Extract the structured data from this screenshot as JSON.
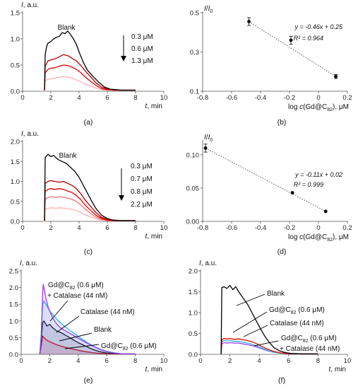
{
  "colors": {
    "black": "#000000",
    "red_dark": "#b00000",
    "red": "#e00000",
    "red_light": "#ff7070",
    "red_lighter": "#ffb0b0",
    "purple": "#9b3df0",
    "cyan": "#22b4e6",
    "blue": "#3a5bd0",
    "gray_dots": "#555555"
  },
  "chart_data": [
    {
      "panel": "(a)",
      "type": "line",
      "ylabel": "I, a.u.",
      "xlabel": "t, min",
      "xlim": [
        0,
        10
      ],
      "ylim": [
        0,
        1.5
      ],
      "xticks": [
        "0",
        "2",
        "4",
        "6",
        "8",
        "10"
      ],
      "yticks": [
        "0.0",
        "0.5",
        "1.0",
        "1.5"
      ],
      "annotations": [
        "Blank",
        "0.3 μM",
        "0.6 μM",
        "1.3 μM"
      ],
      "series": [
        {
          "name": "Blank",
          "color": "#000000",
          "x": [
            1.55,
            1.6,
            1.7,
            1.8,
            2.0,
            2.2,
            2.4,
            2.6,
            2.8,
            3.0,
            3.2,
            3.4,
            3.6,
            3.8,
            4.0,
            4.3,
            4.6,
            5.0,
            5.4,
            5.8,
            6.2,
            6.6,
            7.0,
            7.5,
            8.0
          ],
          "y": [
            0.02,
            0.7,
            0.85,
            0.92,
            0.95,
            1.0,
            1.03,
            1.05,
            1.12,
            1.1,
            1.15,
            1.08,
            1.0,
            0.9,
            0.75,
            0.55,
            0.4,
            0.28,
            0.17,
            0.08,
            0.04,
            0.03,
            0.02,
            0.02,
            0.02
          ]
        },
        {
          "name": "0.3 μM",
          "color": "#b00000",
          "x": [
            1.55,
            1.6,
            1.8,
            2.0,
            2.3,
            2.6,
            2.9,
            3.2,
            3.5,
            3.8,
            4.1,
            4.4,
            4.8,
            5.2,
            5.6,
            6.0,
            6.5,
            7.0,
            8.0
          ],
          "y": [
            0.02,
            0.48,
            0.58,
            0.6,
            0.62,
            0.66,
            0.7,
            0.68,
            0.63,
            0.58,
            0.5,
            0.4,
            0.28,
            0.16,
            0.08,
            0.04,
            0.02,
            0.02,
            0.02
          ]
        },
        {
          "name": "0.6 μM",
          "color": "#e00000",
          "x": [
            1.55,
            1.6,
            1.8,
            2.0,
            2.3,
            2.6,
            2.9,
            3.2,
            3.5,
            3.8,
            4.1,
            4.4,
            4.8,
            5.2,
            5.6,
            6.0,
            6.5,
            7.0,
            8.0
          ],
          "y": [
            0.02,
            0.35,
            0.42,
            0.44,
            0.45,
            0.48,
            0.5,
            0.49,
            0.46,
            0.42,
            0.36,
            0.28,
            0.19,
            0.11,
            0.05,
            0.03,
            0.02,
            0.02,
            0.02
          ]
        },
        {
          "name": "1.3 μM",
          "color": "#ffb0b0",
          "x": [
            1.55,
            1.6,
            1.8,
            2.0,
            2.3,
            2.6,
            2.9,
            3.2,
            3.5,
            3.8,
            4.1,
            4.4,
            4.8,
            5.2,
            5.6,
            6.0,
            7.0,
            8.0
          ],
          "y": [
            0.02,
            0.2,
            0.23,
            0.24,
            0.25,
            0.27,
            0.28,
            0.27,
            0.25,
            0.22,
            0.18,
            0.14,
            0.1,
            0.06,
            0.03,
            0.02,
            0.02,
            0.02
          ]
        }
      ]
    },
    {
      "panel": "(b)",
      "type": "scatter",
      "ylabel": "I/I0",
      "xlabel": "log c(Gd@C82), μM",
      "xlim": [
        -0.8,
        0.2
      ],
      "ylim": [
        0.1,
        0.5
      ],
      "xticks": [
        "-0.8",
        "-0.6",
        "-0.4",
        "-0.2",
        "0",
        "0.2"
      ],
      "yticks": [
        "0.1",
        "0.3",
        "0.5"
      ],
      "equation": "y = -0.46x + 0.25",
      "r2": "R² = 0.964",
      "points": [
        {
          "x": -0.48,
          "y": 0.455,
          "err": 0.02
        },
        {
          "x": -0.19,
          "y": 0.36,
          "err": 0.02
        },
        {
          "x": 0.12,
          "y": 0.175,
          "err": 0.01
        }
      ],
      "fit": {
        "slope": -0.46,
        "intercept": 0.25,
        "x_range": [
          -0.48,
          0.12
        ]
      }
    },
    {
      "panel": "(c)",
      "type": "line",
      "ylabel": "I, a.u.",
      "xlabel": "t, min",
      "xlim": [
        0,
        10
      ],
      "ylim": [
        0,
        2.0
      ],
      "xticks": [
        "0",
        "2",
        "4",
        "6",
        "8",
        "10"
      ],
      "yticks": [
        "0.0",
        "0.5",
        "1.0",
        "1.5",
        "2.0"
      ],
      "annotations": [
        "Blank",
        "0.3 μM",
        "0.7 μM",
        "0.8 μM",
        "2.2 μM"
      ],
      "series": [
        {
          "name": "Blank",
          "color": "#000000",
          "x": [
            1.55,
            1.6,
            1.8,
            2.0,
            2.2,
            2.5,
            2.8,
            3.1,
            3.4,
            3.7,
            4.0,
            4.3,
            4.6,
            4.9,
            5.2,
            5.6,
            6.0,
            6.4,
            7.0,
            8.0
          ],
          "y": [
            0.02,
            1.6,
            1.68,
            1.62,
            1.65,
            1.55,
            1.5,
            1.45,
            1.35,
            1.25,
            1.1,
            0.9,
            0.7,
            0.5,
            0.32,
            0.15,
            0.07,
            0.03,
            0.02,
            0.02
          ]
        },
        {
          "name": "0.3 μM",
          "color": "#b00000",
          "x": [
            1.55,
            1.6,
            1.8,
            2.0,
            2.3,
            2.6,
            2.9,
            3.2,
            3.5,
            3.8,
            4.1,
            4.4,
            4.8,
            5.2,
            5.6,
            6.0,
            6.5,
            7.0,
            8.0
          ],
          "y": [
            0.02,
            0.95,
            1.0,
            1.02,
            1.0,
            0.98,
            1.0,
            0.95,
            0.9,
            0.82,
            0.7,
            0.55,
            0.38,
            0.22,
            0.1,
            0.05,
            0.03,
            0.02,
            0.02
          ]
        },
        {
          "name": "0.7 μM",
          "color": "#e00000",
          "x": [
            1.55,
            1.6,
            1.8,
            2.0,
            2.3,
            2.6,
            2.9,
            3.2,
            3.5,
            3.8,
            4.1,
            4.4,
            4.8,
            5.2,
            5.6,
            6.0,
            6.5,
            7.0,
            8.0
          ],
          "y": [
            0.02,
            0.75,
            0.8,
            0.82,
            0.8,
            0.82,
            0.8,
            0.76,
            0.72,
            0.65,
            0.55,
            0.42,
            0.28,
            0.15,
            0.07,
            0.03,
            0.02,
            0.02,
            0.02
          ]
        },
        {
          "name": "0.8 μM",
          "color": "#ff7070",
          "x": [
            1.55,
            1.6,
            1.8,
            2.0,
            2.3,
            2.6,
            2.9,
            3.2,
            3.5,
            3.8,
            4.1,
            4.4,
            4.8,
            5.2,
            5.6,
            6.0,
            7.0,
            8.0
          ],
          "y": [
            0.02,
            0.55,
            0.6,
            0.62,
            0.6,
            0.62,
            0.6,
            0.58,
            0.55,
            0.5,
            0.42,
            0.32,
            0.2,
            0.1,
            0.05,
            0.03,
            0.02,
            0.02
          ]
        },
        {
          "name": "2.2 μM",
          "color": "#ffb0b0",
          "x": [
            1.55,
            1.6,
            1.8,
            2.0,
            2.3,
            2.6,
            2.9,
            3.2,
            3.5,
            3.8,
            4.1,
            4.4,
            4.8,
            5.2,
            5.6,
            6.0,
            7.0,
            8.0
          ],
          "y": [
            0.02,
            0.3,
            0.33,
            0.34,
            0.33,
            0.34,
            0.33,
            0.32,
            0.3,
            0.27,
            0.23,
            0.17,
            0.11,
            0.06,
            0.03,
            0.02,
            0.02,
            0.02
          ]
        }
      ]
    },
    {
      "panel": "(d)",
      "type": "scatter",
      "ylabel": "I/I0",
      "xlabel": "log c(Gd@C82), μM",
      "xlim": [
        -0.8,
        0.2
      ],
      "ylim": [
        0.0,
        0.12
      ],
      "xticks": [
        "-0.8",
        "-0.6",
        "-0.4",
        "-0.2",
        "0",
        "0.2"
      ],
      "yticks": [
        "0.00",
        "0.05",
        "0.10"
      ],
      "equation": "y = -0.11x + 0.02",
      "r2": "R² = 0.999",
      "points": [
        {
          "x": -0.78,
          "y": 0.11,
          "err": 0.006
        },
        {
          "x": -0.18,
          "y": 0.043,
          "err": 0.0
        },
        {
          "x": 0.05,
          "y": 0.015,
          "err": 0.0
        }
      ],
      "fit": {
        "slope": -0.11,
        "intercept": 0.02,
        "x_range": [
          -0.78,
          0.05
        ]
      }
    },
    {
      "panel": "(e)",
      "type": "area",
      "ylabel": "I, a.u.",
      "xlabel": "t, min",
      "xlim": [
        0,
        10
      ],
      "ylim": [
        0,
        2.5
      ],
      "xticks": [
        "0",
        "2",
        "4",
        "6",
        "8",
        "10"
      ],
      "yticks": [
        "0.0",
        "0.5",
        "1.0",
        "1.5",
        "2.0",
        "2.5"
      ],
      "annotations": [
        "Gd@C82 (0.6 μM)",
        "+ Catalase (44 nM)",
        "Catalase (44 nM)",
        "Blank",
        "Gd@C82 (0.6 μM)"
      ],
      "series": [
        {
          "name": "Gd@C82 (0.6 μM) + Catalase (44 nM)",
          "color": "#9b3df0",
          "x": [
            1.3,
            1.4,
            1.5,
            1.55,
            1.7,
            1.9,
            2.2,
            2.5,
            2.8,
            3.2,
            3.6,
            4.0,
            4.5,
            5.0,
            5.5,
            6.0,
            6.5,
            7.0,
            8.0
          ],
          "y": [
            0.0,
            0.5,
            1.8,
            2.1,
            1.75,
            1.4,
            1.1,
            0.9,
            0.78,
            0.68,
            0.58,
            0.48,
            0.36,
            0.25,
            0.15,
            0.08,
            0.04,
            0.02,
            0.01
          ]
        },
        {
          "name": "Catalase (44 nM)",
          "color": "#22b4e6",
          "x": [
            1.3,
            1.4,
            1.5,
            1.6,
            1.8,
            2.0,
            2.3,
            2.6,
            3.0,
            3.4,
            3.8,
            4.2,
            4.6,
            5.0,
            5.5,
            6.0,
            6.5,
            7.0,
            8.0
          ],
          "y": [
            0.0,
            0.6,
            1.5,
            1.6,
            1.45,
            1.3,
            1.15,
            1.0,
            0.85,
            0.72,
            0.6,
            0.48,
            0.36,
            0.26,
            0.16,
            0.09,
            0.05,
            0.02,
            0.01
          ]
        },
        {
          "name": "Blank",
          "color": "#000000",
          "x": [
            1.3,
            1.4,
            1.5,
            1.6,
            1.8,
            2.0,
            2.2,
            2.5,
            2.8,
            3.2,
            3.6,
            4.0,
            4.5,
            5.0,
            5.5,
            6.0,
            7.0,
            8.0
          ],
          "y": [
            0.0,
            0.4,
            0.95,
            1.0,
            0.85,
            0.9,
            0.8,
            0.7,
            0.65,
            0.55,
            0.45,
            0.35,
            0.25,
            0.15,
            0.08,
            0.04,
            0.02,
            0.01
          ]
        },
        {
          "name": "Gd@C82 (0.6 μM)",
          "color": "#e00000",
          "x": [
            1.3,
            1.4,
            1.5,
            1.6,
            1.8,
            2.0,
            2.3,
            2.6,
            3.0,
            3.5,
            4.0,
            4.5,
            5.0,
            5.5,
            6.0,
            7.0,
            8.0
          ],
          "y": [
            0.0,
            0.25,
            0.55,
            0.5,
            0.42,
            0.38,
            0.32,
            0.27,
            0.22,
            0.17,
            0.12,
            0.08,
            0.05,
            0.03,
            0.02,
            0.01,
            0.01
          ]
        }
      ]
    },
    {
      "panel": "(f)",
      "type": "line",
      "ylabel": "I, a.u.",
      "xlabel": "t, min",
      "xlim": [
        0,
        10
      ],
      "ylim": [
        0,
        2.0
      ],
      "xticks": [
        "0",
        "2",
        "4",
        "6",
        "8",
        "10"
      ],
      "yticks": [
        "0.0",
        "0.5",
        "1.0",
        "1.5",
        "2.0"
      ],
      "annotations": [
        "Blank",
        "Gd@C82 (0.6 μM)",
        "Catalase (44 nM)",
        "Gd@C82 (0.6 μM)",
        "+ Catalase (44 nM)"
      ],
      "series": [
        {
          "name": "Blank",
          "color": "#000000",
          "x": [
            1.4,
            1.45,
            1.6,
            1.8,
            2.0,
            2.2,
            2.4,
            2.6,
            2.9,
            3.2,
            3.5,
            3.8,
            4.1,
            4.4,
            4.7,
            5.0,
            5.4,
            5.8,
            6.2,
            7.0,
            8.0
          ],
          "y": [
            0.0,
            1.6,
            1.62,
            1.58,
            1.65,
            1.55,
            1.62,
            1.5,
            1.35,
            1.2,
            1.0,
            0.8,
            0.6,
            0.42,
            0.28,
            0.16,
            0.08,
            0.04,
            0.02,
            0.01,
            0.01
          ]
        },
        {
          "name": "Gd@C82 (0.6 μM)",
          "color": "#e00000",
          "x": [
            1.4,
            1.45,
            1.6,
            1.8,
            2.0,
            2.3,
            2.6,
            2.9,
            3.2,
            3.5,
            3.8,
            4.1,
            4.5,
            5.0,
            5.5,
            6.0,
            7.0,
            8.0
          ],
          "y": [
            0.0,
            0.35,
            0.38,
            0.37,
            0.38,
            0.36,
            0.37,
            0.35,
            0.33,
            0.3,
            0.26,
            0.2,
            0.13,
            0.07,
            0.03,
            0.02,
            0.01,
            0.01
          ]
        },
        {
          "name": "Catalase (44 nM)",
          "color": "#22b4e6",
          "x": [
            1.4,
            1.45,
            1.6,
            1.8,
            2.0,
            2.3,
            2.6,
            2.9,
            3.2,
            3.5,
            3.8,
            4.1,
            4.5,
            5.0,
            5.5,
            6.0,
            7.0,
            8.0
          ],
          "y": [
            0.0,
            0.3,
            0.33,
            0.32,
            0.33,
            0.31,
            0.31,
            0.29,
            0.27,
            0.24,
            0.2,
            0.16,
            0.1,
            0.05,
            0.03,
            0.02,
            0.01,
            0.01
          ]
        },
        {
          "name": "Gd@C82 (0.6 μM) + Catalase (44 nM)",
          "color": "#9b3df0",
          "x": [
            1.4,
            1.45,
            1.6,
            1.8,
            2.0,
            2.3,
            2.6,
            2.9,
            3.2,
            3.5,
            3.8,
            4.1,
            4.5,
            5.0,
            5.5,
            6.0,
            7.0,
            8.0
          ],
          "y": [
            0.0,
            0.25,
            0.28,
            0.27,
            0.28,
            0.27,
            0.27,
            0.25,
            0.23,
            0.21,
            0.18,
            0.14,
            0.09,
            0.05,
            0.03,
            0.02,
            0.01,
            0.01
          ]
        }
      ]
    }
  ]
}
